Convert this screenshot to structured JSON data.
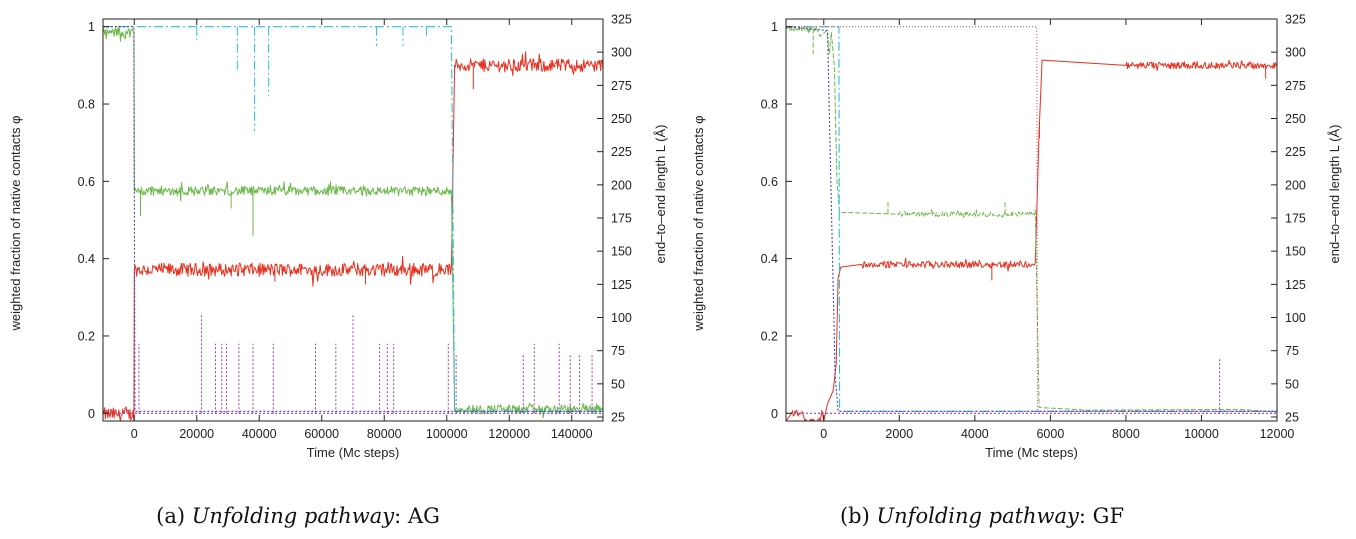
{
  "chart_data": [
    {
      "type": "line",
      "caption": {
        "prefix": "(a)",
        "italic": "Unfolding pathway",
        "suffix": ": AG"
      },
      "xlabel": "Time (Mc steps)",
      "ylabel": "weighted fraction of native contacts φ",
      "y2label": "end–to–end length  L (Å)",
      "xlim": [
        -10000,
        150000
      ],
      "ylim": [
        -0.02,
        1.02
      ],
      "y2lim": [
        22,
        325
      ],
      "x_ticks": [
        0,
        20000,
        40000,
        60000,
        80000,
        100000,
        120000,
        140000
      ],
      "y_ticks": [
        0,
        0.2,
        0.4,
        0.6,
        0.8,
        1
      ],
      "y2_ticks": [
        25,
        50,
        75,
        100,
        125,
        150,
        175,
        200,
        225,
        250,
        275,
        300,
        325
      ],
      "series": [
        {
          "color": "#e8301e",
          "axis": "right",
          "noise": 5,
          "points": [
            [
              -10000,
              27
            ],
            [
              -100,
              27
            ],
            [
              0,
              136
            ],
            [
              101500,
              136
            ],
            [
              102500,
              290
            ],
            [
              150000,
              290
            ]
          ],
          "spikes": [
            [
              108500,
              272
            ],
            [
              45000,
              127
            ],
            [
              74000,
              125
            ]
          ]
        },
        {
          "color": "#6cb84a",
          "axis": "left",
          "noise": 0.012,
          "points": [
            [
              -10000,
              0.985
            ],
            [
              -100,
              0.985
            ],
            [
              0,
              0.575
            ],
            [
              101500,
              0.575
            ],
            [
              102500,
              0.01
            ],
            [
              150000,
              0.01
            ]
          ],
          "spikes": [
            [
              38000,
              0.46
            ],
            [
              2000,
              0.51
            ],
            [
              31000,
              0.53
            ]
          ]
        },
        {
          "color": "#28c1dd",
          "axis": "left",
          "dash": "9,3,2,3",
          "points": [
            [
              -10000,
              1.0
            ],
            [
              -100,
              1.0
            ],
            [
              0,
              1.0
            ],
            [
              101500,
              1.0
            ],
            [
              102500,
              0.005
            ],
            [
              150000,
              0.005
            ]
          ],
          "spikes": [
            [
              20000,
              0.965
            ],
            [
              33000,
              0.88
            ],
            [
              38500,
              0.73
            ],
            [
              43000,
              0.82
            ],
            [
              77500,
              0.95
            ],
            [
              86000,
              0.95
            ],
            [
              93500,
              0.97
            ]
          ]
        },
        {
          "color": "#a33ab1",
          "axis": "left",
          "dash": "2,2",
          "points": [
            [
              -10000,
              0.0
            ],
            [
              150000,
              0.0
            ]
          ],
          "spikes": [
            [
              1500,
              0.18
            ],
            [
              21500,
              0.255
            ],
            [
              26000,
              0.18
            ],
            [
              28000,
              0.18
            ],
            [
              29500,
              0.18
            ],
            [
              33500,
              0.18
            ],
            [
              38000,
              0.18
            ],
            [
              44500,
              0.18
            ],
            [
              58000,
              0.18
            ],
            [
              64500,
              0.18
            ],
            [
              70000,
              0.255
            ],
            [
              78500,
              0.18
            ],
            [
              81000,
              0.18
            ],
            [
              83000,
              0.18
            ],
            [
              100500,
              0.18
            ],
            [
              103000,
              0.15
            ],
            [
              124500,
              0.155
            ],
            [
              128000,
              0.18
            ],
            [
              136000,
              0.18
            ],
            [
              139500,
              0.155
            ],
            [
              142500,
              0.155
            ],
            [
              146500,
              0.155
            ]
          ]
        },
        {
          "color": "#4a3fb8",
          "axis": "left",
          "dash": "2,2",
          "points": [
            [
              -10000,
              1.0
            ],
            [
              -100,
              1.0
            ],
            [
              200,
              0.005
            ],
            [
              101500,
              0.005
            ],
            [
              102300,
              0.005
            ],
            [
              150000,
              0.005
            ]
          ],
          "spikes": []
        }
      ]
    },
    {
      "type": "line",
      "caption": {
        "prefix": "(b)",
        "italic": "Unfolding pathway",
        "suffix": ": GF"
      },
      "xlabel": "Time (Mc steps)",
      "ylabel": "weighted fraction of native contacts φ",
      "y2label": "end–to–end length  L (Å)",
      "xlim": [
        -1000,
        12000
      ],
      "ylim": [
        -0.02,
        1.02
      ],
      "y2lim": [
        22,
        325
      ],
      "x_ticks": [
        0,
        2000,
        4000,
        6000,
        8000,
        10000,
        12000
      ],
      "y_ticks": [
        0,
        0.2,
        0.4,
        0.6,
        0.8,
        1
      ],
      "y2_ticks": [
        25,
        50,
        75,
        100,
        125,
        150,
        175,
        200,
        225,
        250,
        275,
        300,
        325
      ],
      "series": [
        {
          "color": "#e8301e",
          "axis": "right",
          "noise": 2.5,
          "points": [
            [
              -1000,
              22
            ],
            [
              -850,
              28
            ],
            [
              -550,
              28
            ],
            [
              -500,
              22
            ],
            [
              -100,
              22
            ],
            [
              -50,
              30
            ],
            [
              0,
              22
            ],
            [
              100,
              35
            ],
            [
              250,
              45
            ],
            [
              330,
              65
            ],
            [
              380,
              130
            ],
            [
              450,
              138
            ],
            [
              1000,
              140
            ],
            [
              3000,
              140
            ],
            [
              5600,
              140
            ],
            [
              5700,
              240
            ],
            [
              5780,
              294
            ],
            [
              8000,
              290
            ],
            [
              12000,
              290
            ]
          ],
          "spikes": [
            [
              4450,
              128
            ],
            [
              5710,
              235
            ],
            [
              11700,
              280
            ]
          ]
        },
        {
          "color": "#6cb84a",
          "axis": "left",
          "dash": "5,2",
          "noise": 0.006,
          "points": [
            [
              -1000,
              0.995
            ],
            [
              -200,
              0.995
            ],
            [
              -100,
              0.975
            ],
            [
              80,
              0.99
            ],
            [
              150,
              0.93
            ],
            [
              200,
              0.985
            ],
            [
              280,
              0.9
            ],
            [
              350,
              0.6
            ],
            [
              420,
              0.52
            ],
            [
              2000,
              0.515
            ],
            [
              4000,
              0.515
            ],
            [
              5600,
              0.515
            ],
            [
              5700,
              0.015
            ],
            [
              7000,
              0.008
            ],
            [
              11000,
              0.01
            ],
            [
              12000,
              0.003
            ]
          ],
          "spikes": [
            [
              -280,
              0.93
            ],
            [
              1700,
              0.55
            ],
            [
              4800,
              0.55
            ],
            [
              5600,
              0.535
            ]
          ]
        },
        {
          "color": "#28c1dd",
          "axis": "left",
          "dash": "9,3,2,3",
          "points": [
            [
              -1000,
              1.0
            ],
            [
              300,
              1.0
            ],
            [
              400,
              1.0
            ],
            [
              420,
              0.005
            ],
            [
              12000,
              0.005
            ]
          ],
          "spikes": []
        },
        {
          "color": "#e0487a",
          "axis": "left",
          "dash": "1,2",
          "points": [
            [
              -1000,
              1.0
            ],
            [
              5640,
              1.0
            ],
            [
              5660,
              0.005
            ],
            [
              12000,
              0.005
            ]
          ],
          "spikes": []
        },
        {
          "color": "#a33ab1",
          "axis": "left",
          "dash": "2,2",
          "points": [
            [
              -1000,
              0.0
            ],
            [
              12000,
              0.0
            ]
          ],
          "spikes": [
            [
              10480,
              0.145
            ]
          ]
        },
        {
          "color": "#4a3fb8",
          "axis": "left",
          "dash": "2,2",
          "points": [
            [
              -1000,
              1.0
            ],
            [
              100,
              0.99
            ],
            [
              300,
              0.1
            ],
            [
              380,
              0.005
            ],
            [
              12000,
              0.005
            ]
          ],
          "spikes": []
        }
      ]
    }
  ]
}
